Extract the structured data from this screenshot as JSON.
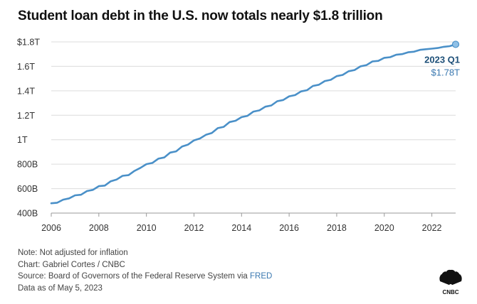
{
  "title": "Student loan debt in the U.S. now totals nearly $1.8 trillion",
  "notes": {
    "note": "Note: Not adjusted for inflation",
    "chart_credit": "Chart: Gabriel Cortes / CNBC",
    "source_prefix": "Source: Board of Governors of the Federal Reserve System via ",
    "source_link": "FRED",
    "data_as_of": "Data as of May 5, 2023"
  },
  "logo": {
    "text": "CNBC",
    "icon": "peacock-icon"
  },
  "colors": {
    "line": "#4a90c8",
    "annotation_label": "#1d4f78",
    "annotation_value": "#3a78b0",
    "link": "#3a78b0"
  },
  "chart_data": {
    "type": "line",
    "title": "Student loan debt in the U.S. now totals nearly $1.8 trillion",
    "xlabel": "",
    "ylabel": "",
    "units": "trillions of USD",
    "xlim": [
      2006,
      2023
    ],
    "ylim": [
      0.4,
      1.8
    ],
    "grid": true,
    "x_ticks": [
      {
        "value": 2006,
        "label": "2006"
      },
      {
        "value": 2008,
        "label": "2008"
      },
      {
        "value": 2010,
        "label": "2010"
      },
      {
        "value": 2012,
        "label": "2012"
      },
      {
        "value": 2014,
        "label": "2014"
      },
      {
        "value": 2016,
        "label": "2016"
      },
      {
        "value": 2018,
        "label": "2018"
      },
      {
        "value": 2020,
        "label": "2020"
      },
      {
        "value": 2022,
        "label": "2022"
      }
    ],
    "y_ticks": [
      {
        "value": 0.4,
        "label": "400B"
      },
      {
        "value": 0.6,
        "label": "600B"
      },
      {
        "value": 0.8,
        "label": "800B"
      },
      {
        "value": 1.0,
        "label": "1T"
      },
      {
        "value": 1.2,
        "label": "1.2T"
      },
      {
        "value": 1.4,
        "label": "1.4T"
      },
      {
        "value": 1.6,
        "label": "1.6T"
      },
      {
        "value": 1.8,
        "label": "$1.8T"
      }
    ],
    "annotation": {
      "label": "2023 Q1",
      "value": "$1.78T",
      "x": 2023.0,
      "y": 1.78
    },
    "series": [
      {
        "x": [
          2006.0,
          2006.25,
          2006.5,
          2006.75,
          2007.0,
          2007.25,
          2007.5,
          2007.75,
          2008.0,
          2008.25,
          2008.5,
          2008.75,
          2009.0,
          2009.25,
          2009.5,
          2009.75,
          2010.0,
          2010.25,
          2010.5,
          2010.75,
          2011.0,
          2011.25,
          2011.5,
          2011.75,
          2012.0,
          2012.25,
          2012.5,
          2012.75,
          2013.0,
          2013.25,
          2013.5,
          2013.75,
          2014.0,
          2014.25,
          2014.5,
          2014.75,
          2015.0,
          2015.25,
          2015.5,
          2015.75,
          2016.0,
          2016.25,
          2016.5,
          2016.75,
          2017.0,
          2017.25,
          2017.5,
          2017.75,
          2018.0,
          2018.25,
          2018.5,
          2018.75,
          2019.0,
          2019.25,
          2019.5,
          2019.75,
          2020.0,
          2020.25,
          2020.5,
          2020.75,
          2021.0,
          2021.25,
          2021.5,
          2021.75,
          2022.0,
          2022.25,
          2022.5,
          2022.75,
          2023.0
        ],
        "values": [
          0.48,
          0.485,
          0.51,
          0.52,
          0.545,
          0.55,
          0.58,
          0.59,
          0.62,
          0.625,
          0.66,
          0.675,
          0.705,
          0.71,
          0.745,
          0.77,
          0.8,
          0.81,
          0.845,
          0.855,
          0.895,
          0.905,
          0.945,
          0.96,
          0.995,
          1.01,
          1.04,
          1.055,
          1.095,
          1.105,
          1.145,
          1.155,
          1.185,
          1.195,
          1.23,
          1.24,
          1.27,
          1.28,
          1.315,
          1.325,
          1.355,
          1.365,
          1.395,
          1.405,
          1.44,
          1.45,
          1.48,
          1.49,
          1.52,
          1.53,
          1.56,
          1.57,
          1.6,
          1.61,
          1.64,
          1.645,
          1.67,
          1.675,
          1.695,
          1.7,
          1.715,
          1.72,
          1.735,
          1.74,
          1.745,
          1.75,
          1.76,
          1.765,
          1.78
        ]
      }
    ]
  }
}
